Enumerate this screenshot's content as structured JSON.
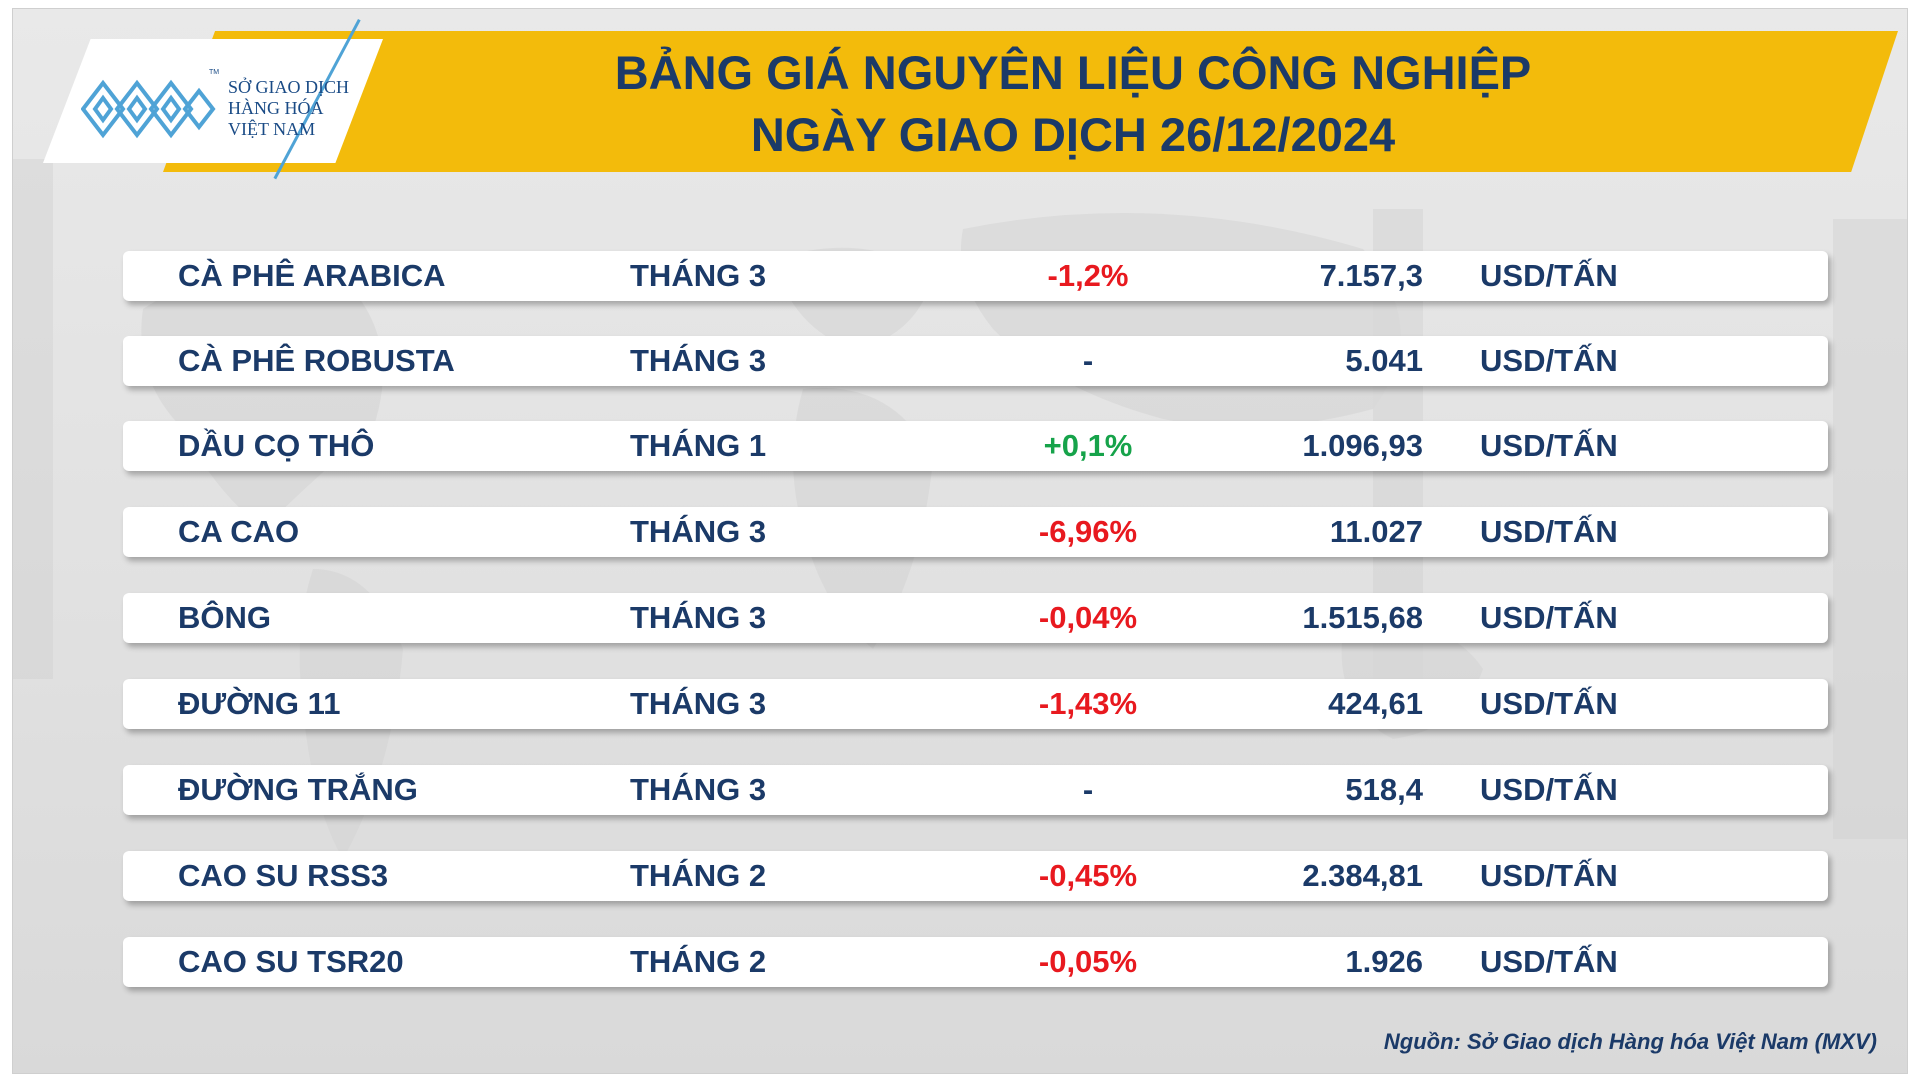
{
  "header": {
    "title_line1": "BẢNG GIÁ NGUYÊN LIỆU CÔNG NGHIỆP",
    "title_line2": "NGÀY GIAO DỊCH 26/12/2024"
  },
  "logo": {
    "line1": "SỞ GIAO DỊCH",
    "line2": "HÀNG HÓA",
    "line3": "VIỆT NAM",
    "tm": "TM",
    "color": "#1a4b86",
    "accent": "#4fa3d6"
  },
  "colors": {
    "banner": "#f3bb0b",
    "text": "#1b3a68",
    "negative": "#e8191f",
    "positive": "#16a34a"
  },
  "rows": [
    {
      "name": "CÀ PHÊ ARABICA",
      "month": "THÁNG 3",
      "change": "-1,2%",
      "trend": "down",
      "price": "7.157,3",
      "unit": "USD/TẤN"
    },
    {
      "name": "CÀ PHÊ ROBUSTA",
      "month": "THÁNG 3",
      "change": "-",
      "trend": "flat",
      "price": "5.041",
      "unit": "USD/TẤN"
    },
    {
      "name": "DẦU CỌ THÔ",
      "month": "THÁNG 1",
      "change": "+0,1%",
      "trend": "up",
      "price": "1.096,93",
      "unit": "USD/TẤN"
    },
    {
      "name": "CA CAO",
      "month": "THÁNG 3",
      "change": "-6,96%",
      "trend": "down",
      "price": "11.027",
      "unit": "USD/TẤN"
    },
    {
      "name": "BÔNG",
      "month": "THÁNG 3",
      "change": "-0,04%",
      "trend": "down",
      "price": "1.515,68",
      "unit": "USD/TẤN"
    },
    {
      "name": "ĐƯỜNG 11",
      "month": "THÁNG 3",
      "change": "-1,43%",
      "trend": "down",
      "price": "424,61",
      "unit": "USD/TẤN"
    },
    {
      "name": "ĐƯỜNG TRẮNG",
      "month": "THÁNG 3",
      "change": "-",
      "trend": "flat",
      "price": "518,4",
      "unit": "USD/TẤN"
    },
    {
      "name": "CAO SU RSS3",
      "month": "THÁNG 2",
      "change": "-0,45%",
      "trend": "down",
      "price": "2.384,81",
      "unit": "USD/TẤN"
    },
    {
      "name": "CAO SU TSR20",
      "month": "THÁNG 2",
      "change": "-0,05%",
      "trend": "down",
      "price": "1.926",
      "unit": "USD/TẤN"
    }
  ],
  "footer": {
    "source": "Nguồn: Sở Giao dịch Hàng hóa Việt Nam (MXV)"
  }
}
